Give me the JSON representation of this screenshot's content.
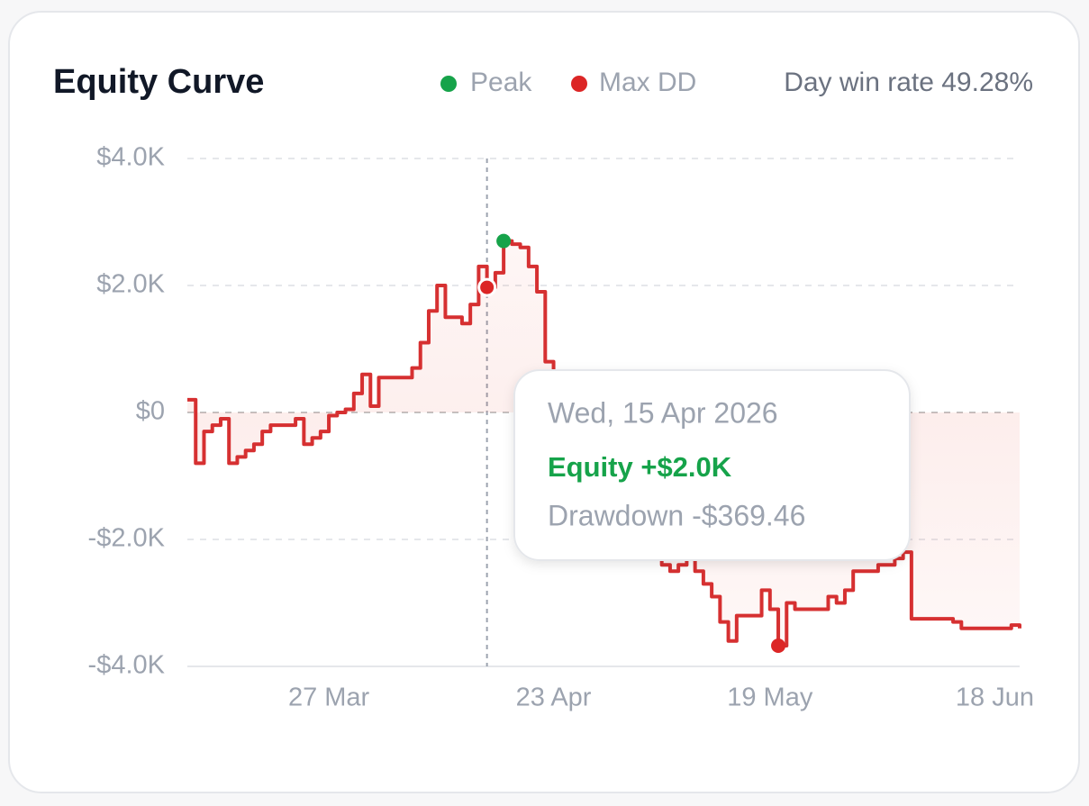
{
  "chart_data": {
    "type": "line",
    "title": "Equity Curve",
    "legend": [
      {
        "name": "Peak",
        "color": "#16a34a"
      },
      {
        "name": "Max DD",
        "color": "#dc2626"
      }
    ],
    "stat": "Day win rate 49.28%",
    "color": "#d63031",
    "categories": [
      null,
      null,
      null,
      null,
      null,
      null,
      null,
      null,
      null,
      null,
      null,
      null,
      null,
      null,
      null,
      null,
      null,
      "27 Mar",
      null,
      null,
      null,
      null,
      null,
      null,
      null,
      null,
      null,
      null,
      null,
      null,
      null,
      null,
      null,
      null,
      null,
      null,
      null,
      null,
      null,
      null,
      null,
      null,
      null,
      null,
      "23 Apr",
      null,
      null,
      null,
      null,
      null,
      null,
      null,
      null,
      null,
      null,
      null,
      null,
      null,
      null,
      null,
      null,
      null,
      null,
      null,
      null,
      null,
      null,
      null,
      null,
      null,
      "19 May",
      null,
      null,
      null,
      null,
      null,
      null,
      null,
      null,
      null,
      null,
      null,
      null,
      null,
      null,
      null,
      null,
      null,
      null,
      null,
      null,
      null,
      null,
      null,
      null,
      null,
      null,
      null,
      null,
      null,
      "18 Jun"
    ],
    "values": [
      200,
      -800,
      -300,
      -200,
      -100,
      -800,
      -700,
      -600,
      -500,
      -300,
      -200,
      -200,
      -200,
      -100,
      -500,
      -400,
      -300,
      -50,
      0,
      50,
      300,
      600,
      100,
      550,
      550,
      550,
      550,
      700,
      1100,
      1600,
      2000,
      1500,
      1500,
      1400,
      1700,
      2300,
      1970,
      2200,
      2700,
      2650,
      2600,
      2300,
      1900,
      800,
      0,
      -600,
      -1000,
      -1300,
      -1200,
      -1500,
      -1700,
      -1600,
      -1900,
      -2000,
      -2100,
      -2300,
      -2200,
      -2400,
      -2500,
      -2400,
      -2300,
      -2500,
      -2700,
      -2900,
      -3300,
      -3600,
      -3200,
      -3200,
      -3200,
      -2800,
      -3100,
      -3674,
      -3000,
      -3100,
      -3100,
      -3100,
      -3100,
      -2900,
      -3000,
      -2800,
      -2500,
      -2500,
      -2500,
      -2400,
      -2400,
      -2300,
      -2200,
      -3250,
      -3250,
      -3250,
      -3250,
      -3250,
      -3300,
      -3400,
      -3400,
      -3400,
      -3400,
      -3400,
      -3400,
      -3350,
      -3400
    ],
    "peak_index": 38,
    "max_dd_index": 71,
    "hover_index": 36,
    "ylim": [
      -4000,
      4000
    ],
    "yticks": [
      {
        "value": -4000,
        "label": "-$4.0K"
      },
      {
        "value": -2000,
        "label": "-$2.0K"
      },
      {
        "value": 0,
        "label": "$0"
      },
      {
        "value": 2000,
        "label": "$2.0K"
      },
      {
        "value": 4000,
        "label": "$4.0K"
      }
    ],
    "grid": true,
    "tooltip": {
      "date": "Wed, 15 Apr 2026",
      "equity": "Equity +$2.0K",
      "drawdown": "Drawdown -$369.46"
    }
  }
}
